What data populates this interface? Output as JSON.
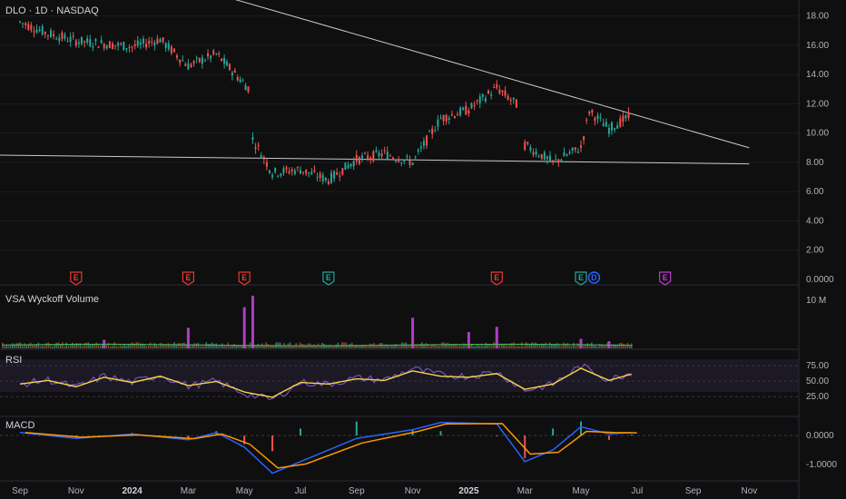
{
  "header": {
    "title": "DLO · 1D · NASDAQ"
  },
  "panes": {
    "volume_label": "VSA Wyckoff Volume",
    "rsi_label": "RSI",
    "macd_label": "MACD"
  },
  "colors": {
    "up": "#26a69a",
    "down": "#ef5350",
    "volume_spike": "#b03cc8",
    "volume_ma": "#4caf50",
    "rsi_line": "#7e57c2",
    "rsi_ma": "#f5d547",
    "macd_line": "#2962ff",
    "signal_line": "#ff9800",
    "trendline": "#c8c8c8",
    "earnings_red": "#e53935",
    "earnings_green": "#26a69a",
    "dividend_blue": "#2962ff",
    "earnings_purple": "#c53bd1"
  },
  "chart_data": {
    "type": "candlestick",
    "title": "DLO · 1D · NASDAQ",
    "price_axis": {
      "ticks": [
        "18.00",
        "16.00",
        "14.00",
        "12.00",
        "10.00",
        "8.00",
        "6.00",
        "4.00",
        "2.00",
        "0.0000"
      ],
      "values": [
        18,
        16,
        14,
        12,
        10,
        8,
        6,
        4,
        2,
        0
      ],
      "range": [
        0,
        18.6
      ]
    },
    "time_axis": {
      "labels": [
        "Sep",
        "Nov",
        "2024",
        "Mar",
        "May",
        "Jul",
        "Sep",
        "Nov",
        "2025",
        "Mar",
        "May",
        "Jul",
        "Sep",
        "Nov"
      ],
      "bold": [
        "2024",
        "2025"
      ]
    },
    "price_series": [
      {
        "date": "2023-09",
        "price": 17.6
      },
      {
        "date": "2023-10",
        "price": 16.8
      },
      {
        "date": "2023-11",
        "price": 16.3
      },
      {
        "date": "2023-12",
        "price": 16.1
      },
      {
        "date": "2024-01",
        "price": 15.9
      },
      {
        "date": "2024-02",
        "price": 16.4
      },
      {
        "date": "2024-03",
        "price": 14.6
      },
      {
        "date": "2024-04",
        "price": 15.4
      },
      {
        "date": "2024-05-08",
        "price": 12.9
      },
      {
        "date": "2024-05-10",
        "price": 9.6
      },
      {
        "date": "2024-06",
        "price": 7.3
      },
      {
        "date": "2024-07",
        "price": 7.5
      },
      {
        "date": "2024-08",
        "price": 6.8
      },
      {
        "date": "2024-09",
        "price": 8.2
      },
      {
        "date": "2024-10",
        "price": 8.6
      },
      {
        "date": "2024-11",
        "price": 8.0
      },
      {
        "date": "2024-12",
        "price": 11.0
      },
      {
        "date": "2025-01",
        "price": 11.6
      },
      {
        "date": "2025-02",
        "price": 13.1
      },
      {
        "date": "2025-02-25",
        "price": 11.8
      },
      {
        "date": "2025-03",
        "price": 9.2
      },
      {
        "date": "2025-04",
        "price": 8.0
      },
      {
        "date": "2025-05",
        "price": 9.0
      },
      {
        "date": "2025-05-10",
        "price": 11.5
      },
      {
        "date": "2025-06",
        "price": 10.3
      },
      {
        "date": "2025-06-25",
        "price": 11.2
      }
    ],
    "trendlines": [
      {
        "from": {
          "date": "2023-08",
          "price": 8.5
        },
        "to": {
          "date": "2025-11",
          "price": 7.9
        }
      },
      {
        "from": {
          "date": "2024-04",
          "price": 19.5
        },
        "to": {
          "date": "2025-11",
          "price": 9.0
        }
      }
    ],
    "events": [
      {
        "date": "2023-11",
        "label": "E",
        "kind": "earnings_red"
      },
      {
        "date": "2024-03",
        "label": "E",
        "kind": "earnings_red"
      },
      {
        "date": "2024-05",
        "label": "E",
        "kind": "earnings_red"
      },
      {
        "date": "2024-08",
        "label": "E",
        "kind": "earnings_green"
      },
      {
        "date": "2025-02",
        "label": "E",
        "kind": "earnings_red"
      },
      {
        "date": "2025-05",
        "label": "E",
        "kind": "earnings_green"
      },
      {
        "date": "2025-05-15",
        "label": "D",
        "kind": "dividend_blue"
      },
      {
        "date": "2025-08",
        "label": "E",
        "kind": "earnings_purple"
      }
    ],
    "volume": {
      "axis_label": "10 M",
      "axis_value": 10000000,
      "spikes": [
        {
          "date": "2023-12",
          "value": 1800000
        },
        {
          "date": "2024-03",
          "value": 4300000
        },
        {
          "date": "2024-05",
          "value": 8600000
        },
        {
          "date": "2024-05-10",
          "value": 11000000
        },
        {
          "date": "2024-11",
          "value": 6400000
        },
        {
          "date": "2025-01",
          "value": 3400000
        },
        {
          "date": "2025-02",
          "value": 4500000
        },
        {
          "date": "2025-05",
          "value": 2000000
        },
        {
          "date": "2025-06",
          "value": 1500000
        }
      ]
    },
    "rsi": {
      "ticks": [
        "75.00",
        "50.00",
        "25.00"
      ],
      "values": [
        75,
        50,
        25
      ],
      "series": [
        {
          "date": "2023-09",
          "rsi": 45
        },
        {
          "date": "2023-10",
          "rsi": 52
        },
        {
          "date": "2023-11",
          "rsi": 40
        },
        {
          "date": "2023-12",
          "rsi": 58
        },
        {
          "date": "2024-01",
          "rsi": 48
        },
        {
          "date": "2024-02",
          "rsi": 60
        },
        {
          "date": "2024-03",
          "rsi": 42
        },
        {
          "date": "2024-04",
          "rsi": 50
        },
        {
          "date": "2024-05",
          "rsi": 30
        },
        {
          "date": "2024-06",
          "rsi": 20
        },
        {
          "date": "2024-07",
          "rsi": 48
        },
        {
          "date": "2024-08",
          "rsi": 45
        },
        {
          "date": "2024-09",
          "rsi": 55
        },
        {
          "date": "2024-10",
          "rsi": 52
        },
        {
          "date": "2024-11",
          "rsi": 70
        },
        {
          "date": "2024-12",
          "rsi": 60
        },
        {
          "date": "2025-01",
          "rsi": 58
        },
        {
          "date": "2025-02",
          "rsi": 65
        },
        {
          "date": "2025-03",
          "rsi": 35
        },
        {
          "date": "2025-04",
          "rsi": 45
        },
        {
          "date": "2025-05",
          "rsi": 75
        },
        {
          "date": "2025-06",
          "rsi": 52
        },
        {
          "date": "2025-06-25",
          "rsi": 64
        }
      ]
    },
    "macd": {
      "ticks": [
        "0.0000",
        "-1.0000"
      ],
      "values": [
        0,
        -1
      ],
      "series": [
        {
          "date": "2023-09",
          "macd": 0.1
        },
        {
          "date": "2023-11",
          "macd": -0.1
        },
        {
          "date": "2024-01",
          "macd": 0.05
        },
        {
          "date": "2024-03",
          "macd": -0.15
        },
        {
          "date": "2024-04",
          "macd": 0.1
        },
        {
          "date": "2024-05",
          "macd": -0.4
        },
        {
          "date": "2024-06",
          "macd": -1.3
        },
        {
          "date": "2024-07",
          "macd": -0.9
        },
        {
          "date": "2024-09",
          "macd": -0.1
        },
        {
          "date": "2024-11",
          "macd": 0.2
        },
        {
          "date": "2024-12",
          "macd": 0.45
        },
        {
          "date": "2025-02",
          "macd": 0.4
        },
        {
          "date": "2025-03",
          "macd": -0.9
        },
        {
          "date": "2025-04",
          "macd": -0.5
        },
        {
          "date": "2025-05",
          "macd": 0.3
        },
        {
          "date": "2025-06",
          "macd": 0.05
        },
        {
          "date": "2025-06-25",
          "macd": 0.1
        }
      ]
    }
  }
}
